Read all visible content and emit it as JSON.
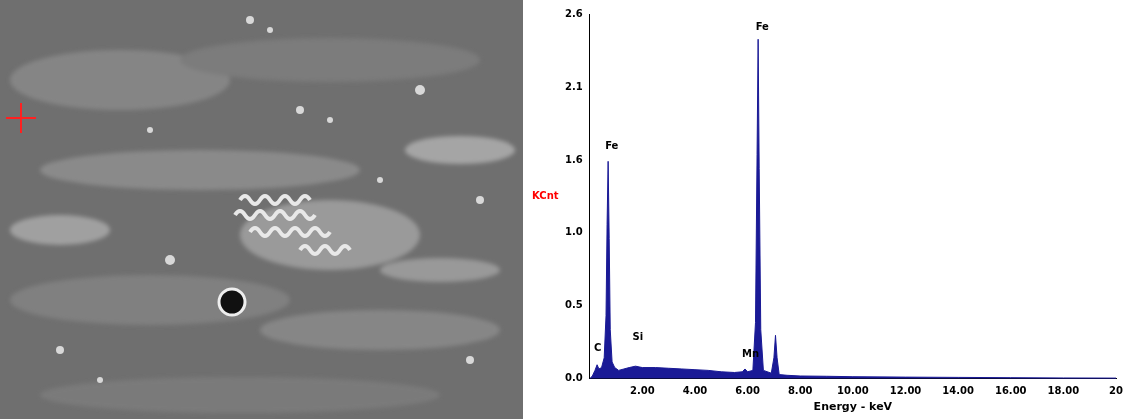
{
  "chart_data": {
    "type": "line",
    "x_label": "Energy - keV",
    "y_label": "KCnt",
    "color": "#1a1a96",
    "grid": false,
    "x": [
      0.0,
      0.1,
      0.2,
      0.28,
      0.35,
      0.45,
      0.55,
      0.62,
      0.66,
      0.7,
      0.74,
      0.78,
      0.85,
      0.95,
      1.1,
      1.3,
      1.5,
      1.74,
      2.0,
      2.5,
      3.0,
      3.5,
      4.0,
      4.5,
      5.0,
      5.5,
      5.8,
      5.9,
      6.0,
      6.2,
      6.3,
      6.36,
      6.4,
      6.44,
      6.5,
      6.6,
      6.9,
      7.0,
      7.06,
      7.12,
      7.2,
      7.5,
      8,
      9,
      10,
      12,
      14,
      16,
      18,
      20
    ],
    "values": [
      0,
      0.02,
      0.06,
      0.1,
      0.07,
      0.08,
      0.15,
      0.45,
      1.1,
      1.55,
      1.0,
      0.35,
      0.12,
      0.08,
      0.06,
      0.07,
      0.08,
      0.09,
      0.08,
      0.08,
      0.075,
      0.07,
      0.065,
      0.06,
      0.05,
      0.045,
      0.05,
      0.07,
      0.05,
      0.06,
      0.4,
      1.6,
      2.42,
      1.5,
      0.35,
      0.06,
      0.04,
      0.15,
      0.31,
      0.15,
      0.03,
      0.025,
      0.02,
      0.018,
      0.015,
      0.012,
      0.01,
      0.008,
      0.006,
      0.005
    ],
    "xlim": [
      0,
      20
    ],
    "xticks": [
      {
        "value": 2,
        "label": "2.00"
      },
      {
        "value": 4,
        "label": "4.00"
      },
      {
        "value": 6,
        "label": "6.00"
      },
      {
        "value": 8,
        "label": "8.00"
      },
      {
        "value": 10,
        "label": "10.00"
      },
      {
        "value": 12,
        "label": "12.00"
      },
      {
        "value": 14,
        "label": "14.00"
      },
      {
        "value": 16,
        "label": "16.00"
      },
      {
        "value": 18,
        "label": "18.00"
      },
      20
    ],
    "ylim": [
      0,
      2.6
    ],
    "yticks": [
      {
        "value": 0,
        "label": "0.0"
      },
      {
        "value": 0.52,
        "label": "0.5"
      },
      {
        "value": 1.04,
        "label": "1.0"
      },
      {
        "value": 1.56,
        "label": "1.6"
      },
      {
        "value": 2.08,
        "label": "2.1"
      },
      2.6
    ],
    "annotations": [
      {
        "text": "C",
        "x": 0.28,
        "y": 0.18
      },
      {
        "text": "Fe",
        "x": 0.7,
        "y": 1.62
      },
      {
        "text": "Si",
        "x": 1.74,
        "y": 0.26
      },
      {
        "text": "Mn",
        "x": 5.9,
        "y": 0.14
      },
      {
        "text": "Fe",
        "x": 6.42,
        "y": 2.47
      }
    ]
  }
}
